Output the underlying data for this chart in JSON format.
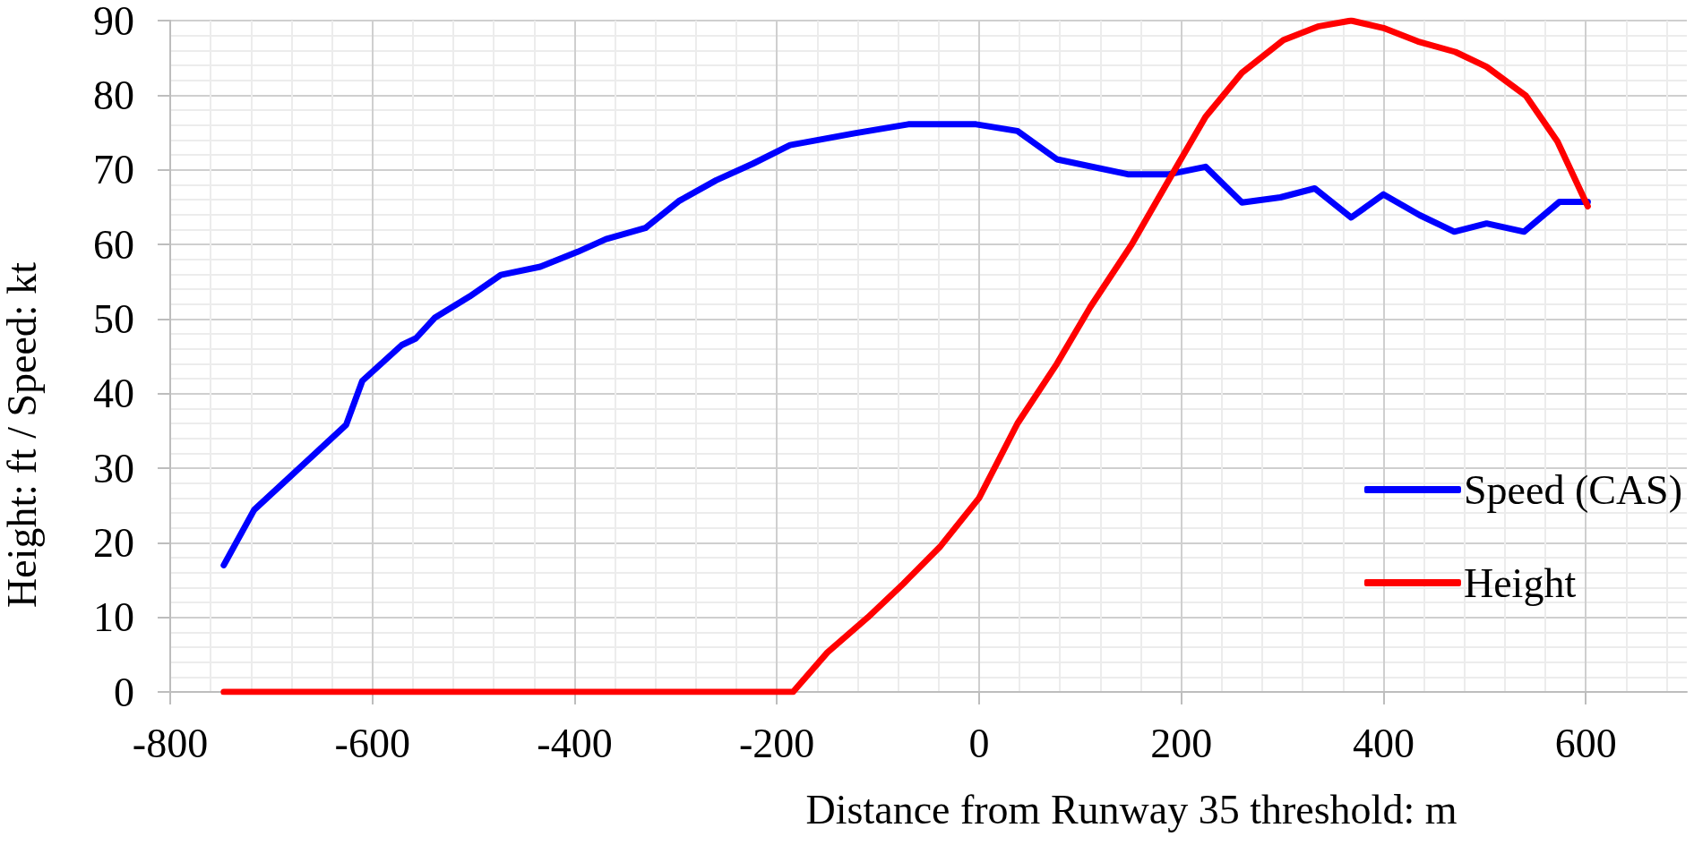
{
  "chart_data": {
    "type": "line",
    "xlabel": "Distance from Runway 35 threshold: m",
    "ylabel": "Height: ft / Speed: kt",
    "xlim": [
      -800,
      700
    ],
    "xticks": [
      -800,
      -600,
      -400,
      -200,
      0,
      200,
      400,
      600
    ],
    "ylim": [
      0,
      90
    ],
    "yticks": [
      0,
      10,
      20,
      30,
      40,
      50,
      60,
      70,
      80,
      90
    ],
    "grid": true,
    "legend": "bottom right",
    "marker": "none",
    "line_style": "solid",
    "series": [
      {
        "name": "Speed (CAS)",
        "color": "#0000ff",
        "x": [
          -747,
          -717,
          -626,
          -610,
          -571,
          -557,
          -538,
          -504,
          -473,
          -434,
          -397,
          -369,
          -330,
          -297,
          -260,
          -224,
          -187,
          -123,
          -70,
          -3,
          38,
          77,
          147,
          188,
          224,
          260,
          298,
          332,
          368,
          400,
          436,
          470,
          502,
          539,
          574,
          602
        ],
        "values": [
          17,
          24.4,
          35.8,
          41.7,
          46.5,
          47.4,
          50.2,
          53,
          55.9,
          57,
          59,
          60.7,
          62.2,
          65.8,
          68.6,
          70.8,
          73.3,
          74.9,
          76.1,
          76.1,
          75.2,
          71.4,
          69.4,
          69.4,
          70.4,
          65.6,
          66.3,
          67.5,
          63.6,
          66.7,
          63.9,
          61.7,
          62.8,
          61.7,
          65.7,
          65.7
        ]
      },
      {
        "name": "Height",
        "color": "#ff0000",
        "x": [
          -747,
          -184,
          -150,
          -110,
          -75,
          -39,
          0,
          38,
          77,
          110,
          151,
          188,
          224,
          260,
          301,
          335,
          368,
          400,
          434,
          471,
          502,
          541,
          572,
          602
        ],
        "values": [
          0,
          0,
          5.3,
          10,
          14.5,
          19.4,
          26,
          36,
          44,
          51.6,
          60,
          68.7,
          77.1,
          83,
          87.4,
          89.2,
          90,
          89,
          87.2,
          85.8,
          83.8,
          79.9,
          73.8,
          65.1
        ]
      }
    ]
  }
}
